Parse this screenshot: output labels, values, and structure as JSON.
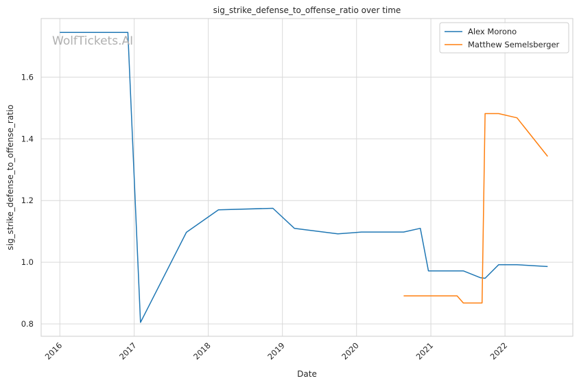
{
  "chart_data": {
    "type": "line",
    "title": "sig_strike_defense_to_offense_ratio over time",
    "xlabel": "Date",
    "ylabel": "sig_strike_defense_to_offense_ratio",
    "watermark": "WolfTickets.AI",
    "grid": true,
    "legend_position": "top-right",
    "xlim": [
      "2015-10-01",
      "2022-12-01"
    ],
    "ylim": [
      0.76,
      1.79
    ],
    "x_ticks": [
      "2016-01-01",
      "2017-01-01",
      "2018-01-01",
      "2019-01-01",
      "2020-01-01",
      "2021-01-01",
      "2022-01-01"
    ],
    "x_tick_labels": [
      "2016",
      "2017",
      "2018",
      "2019",
      "2020",
      "2021",
      "2022"
    ],
    "y_ticks": [
      0.8,
      1.0,
      1.2,
      1.4,
      1.6
    ],
    "y_tick_labels": [
      "0.8",
      "1.0",
      "1.2",
      "1.4",
      "1.6"
    ],
    "series": [
      {
        "name": "Alex Morono",
        "color": "#1f77b4",
        "x": [
          "2016-01-01",
          "2016-12-01",
          "2017-02-01",
          "2017-09-15",
          "2018-02-20",
          "2018-11-15",
          "2019-03-01",
          "2019-10-01",
          "2020-01-25",
          "2020-08-20",
          "2020-11-10",
          "2020-12-20",
          "2021-06-10",
          "2021-09-01",
          "2021-09-25",
          "2021-12-01",
          "2022-03-01",
          "2022-07-30"
        ],
        "y": [
          1.745,
          1.745,
          0.805,
          1.097,
          1.17,
          1.175,
          1.11,
          1.092,
          1.098,
          1.098,
          1.11,
          0.972,
          0.972,
          0.95,
          0.948,
          0.992,
          0.992,
          0.986
        ]
      },
      {
        "name": "Matthew Semelsberger",
        "color": "#ff7f0e",
        "x": [
          "2020-08-20",
          "2021-05-10",
          "2021-06-10",
          "2021-09-10",
          "2021-09-25",
          "2021-12-01",
          "2022-03-01",
          "2022-07-30"
        ],
        "y": [
          0.891,
          0.891,
          0.868,
          0.868,
          1.482,
          1.482,
          1.468,
          1.343
        ]
      }
    ]
  }
}
